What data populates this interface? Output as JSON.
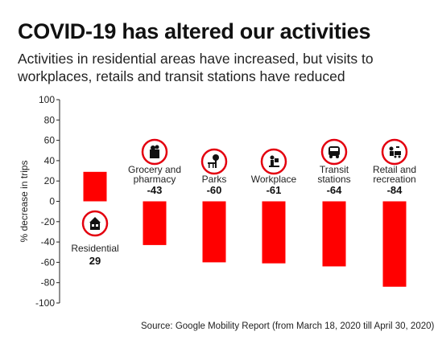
{
  "header": {
    "title": "COVID-19 has altered our activities",
    "subtitle_line1": "Activities in residential areas have increased, but visits to",
    "subtitle_line2": "workplaces, retails and transit stations have reduced"
  },
  "footer": {
    "source": "Source: Google Mobility Report (from March 18, 2020 till April 30, 2020)"
  },
  "colors": {
    "bar": "#ff0000",
    "icon_ring": "#e3000f",
    "text": "#111111"
  },
  "chart_data": {
    "type": "bar",
    "ylabel": "% decrease in trips",
    "ylim": [
      -100,
      100
    ],
    "yticks": [
      100,
      80,
      60,
      40,
      20,
      0,
      -20,
      -40,
      -60,
      -80,
      -100
    ],
    "grid": false,
    "categories": [
      {
        "name": "Residential",
        "lines": [
          "Residential"
        ],
        "value": 29,
        "value_label": "29",
        "icon": "house-icon"
      },
      {
        "name": "Grocery and pharmacy",
        "lines": [
          "Grocery and",
          "pharmacy"
        ],
        "value": -43,
        "value_label": "-43",
        "icon": "grocery-bag-icon"
      },
      {
        "name": "Parks",
        "lines": [
          "Parks"
        ],
        "value": -60,
        "value_label": "-60",
        "icon": "park-bench-icon"
      },
      {
        "name": "Workplace",
        "lines": [
          "Workplace"
        ],
        "value": -61,
        "value_label": "-61",
        "icon": "person-at-desk-icon"
      },
      {
        "name": "Transit stations",
        "lines": [
          "Transit",
          "stations"
        ],
        "value": -64,
        "value_label": "-64",
        "icon": "bus-icon"
      },
      {
        "name": "Retail and recreation",
        "lines": [
          "Retail and",
          "recreation"
        ],
        "value": -84,
        "value_label": "-84",
        "icon": "shopping-cart-icon"
      }
    ]
  }
}
